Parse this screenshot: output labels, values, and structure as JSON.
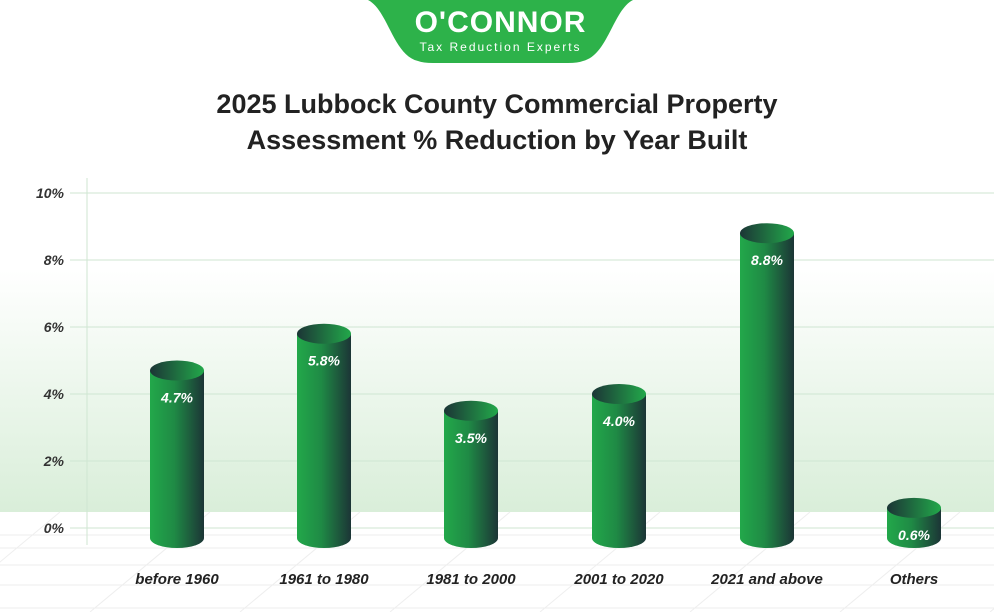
{
  "logo": {
    "name": "O'CONNOR",
    "tagline": "Tax Reduction Experts"
  },
  "colors": {
    "brand": "#2db24a",
    "bar_light": "#22a84a",
    "bar_dark": "#1c3536",
    "grid": "#cfe6d2"
  },
  "chart_data": {
    "type": "bar",
    "title": "2025 Lubbock County Commercial Property Assessment % Reduction by Year Built",
    "categories": [
      "before 1960",
      "1961 to 1980",
      "1981 to 2000",
      "2001 to 2020",
      "2021 and above",
      "Others"
    ],
    "values": [
      4.7,
      5.8,
      3.5,
      4.0,
      8.8,
      0.6
    ],
    "value_labels": [
      "4.7%",
      "5.8%",
      "3.5%",
      "4.0%",
      "8.8%",
      "0.6%"
    ],
    "yticks": [
      "0%",
      "2%",
      "4%",
      "6%",
      "8%",
      "10%"
    ],
    "ylim": [
      0,
      10
    ],
    "grid": true,
    "xlabel": "",
    "ylabel": ""
  }
}
